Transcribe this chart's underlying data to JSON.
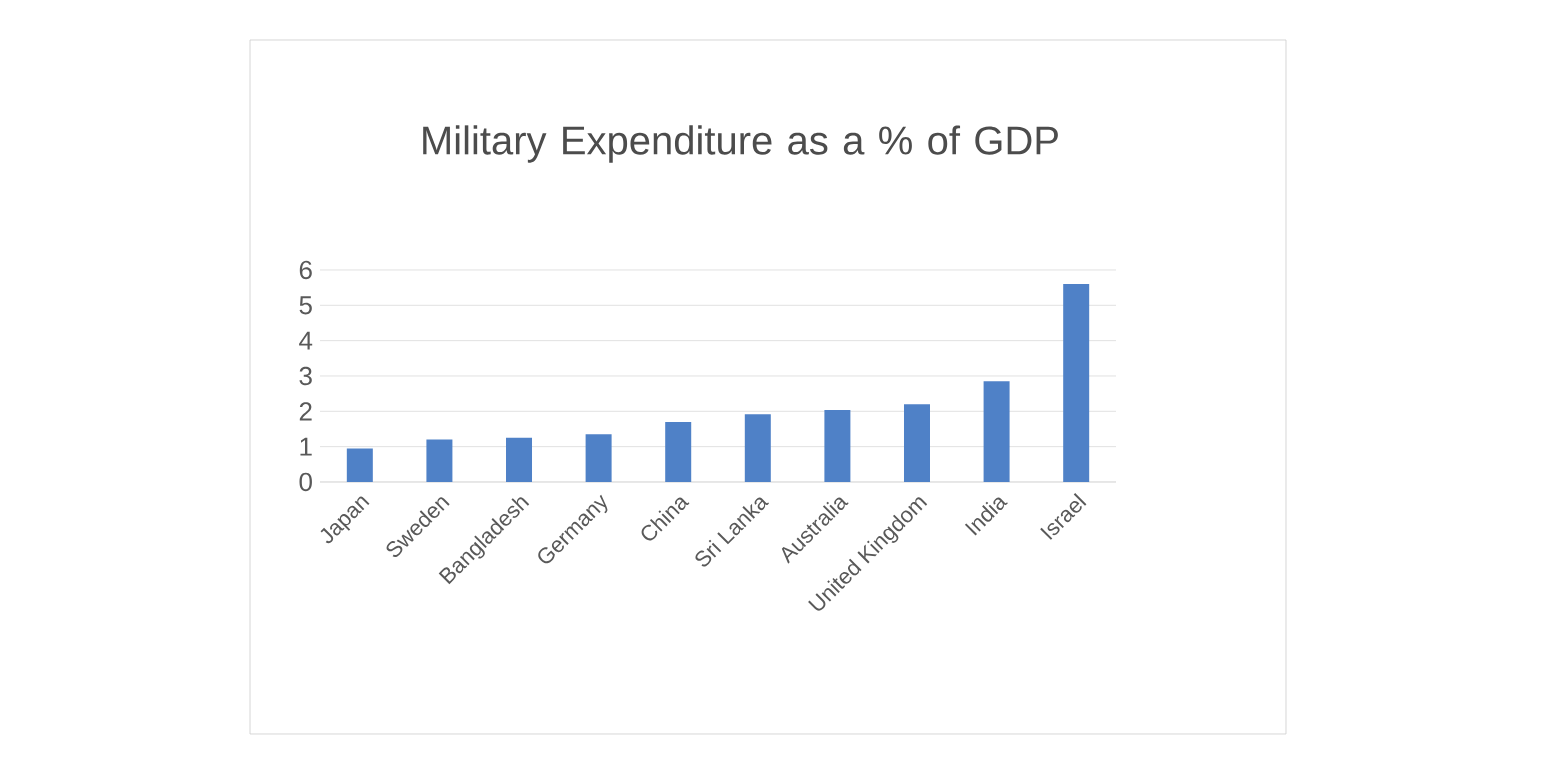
{
  "chart_data": {
    "type": "bar",
    "title": "Military Expenditure as a % of GDP",
    "categories": [
      "Japan",
      "Sweden",
      "Bangladesh",
      "Germany",
      "China",
      "Sri Lanka",
      "Australia",
      "United Kingdom",
      "India",
      "Israel"
    ],
    "values": [
      0.95,
      1.2,
      1.25,
      1.35,
      1.7,
      1.92,
      2.04,
      2.2,
      2.85,
      5.6
    ],
    "color": "#4f81c7",
    "ylim": [
      0,
      6
    ],
    "yticks": [
      0,
      1,
      2,
      3,
      4,
      5,
      6
    ],
    "grid": "y"
  }
}
